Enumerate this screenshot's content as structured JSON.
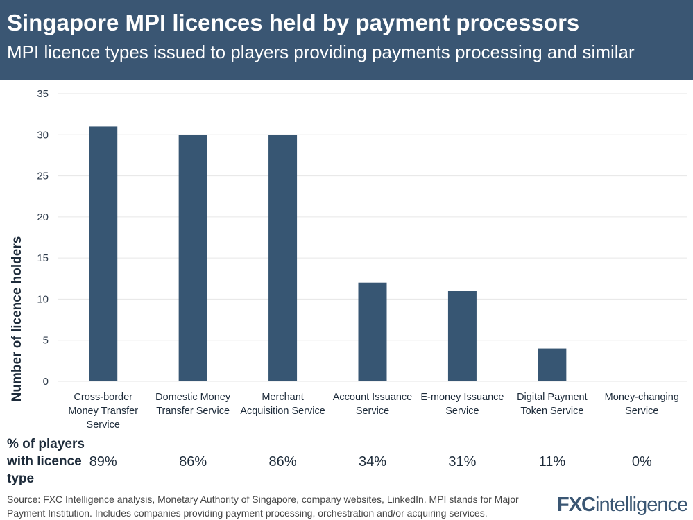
{
  "header": {
    "title": "Singapore MPI licences held by payment processors",
    "subtitle": "MPI licence types issued to players providing payments processing and similar"
  },
  "chart_data": {
    "type": "bar",
    "categories": [
      [
        "Cross-border",
        "Money Transfer",
        "Service"
      ],
      [
        "Domestic Money",
        "Transfer Service"
      ],
      [
        "Merchant",
        "Acquisition Service"
      ],
      [
        "Account Issuance",
        "Service"
      ],
      [
        "E-money Issuance",
        "Service"
      ],
      [
        "Digital Payment",
        "Token Service"
      ],
      [
        "Money-changing",
        "Service"
      ]
    ],
    "values": [
      31,
      30,
      30,
      12,
      11,
      4,
      0
    ],
    "ylabel": "Number of licence holders",
    "ylim": [
      0,
      35
    ],
    "yticks": [
      0,
      5,
      10,
      15,
      20,
      25,
      30,
      35
    ],
    "grid": true,
    "bar_color": "#375673"
  },
  "percent": {
    "label": "% of players with licence type",
    "values": [
      "89%",
      "86%",
      "86%",
      "34%",
      "31%",
      "11%",
      "0%"
    ]
  },
  "footer": {
    "source": "Source: FXC Intelligence analysis, Monetary Authority of Singapore, company websites, LinkedIn. MPI stands for Major Payment Institution. Includes companies providing payment processing, orchestration and/or acquiring services.",
    "logo": "FXCintelligence"
  }
}
